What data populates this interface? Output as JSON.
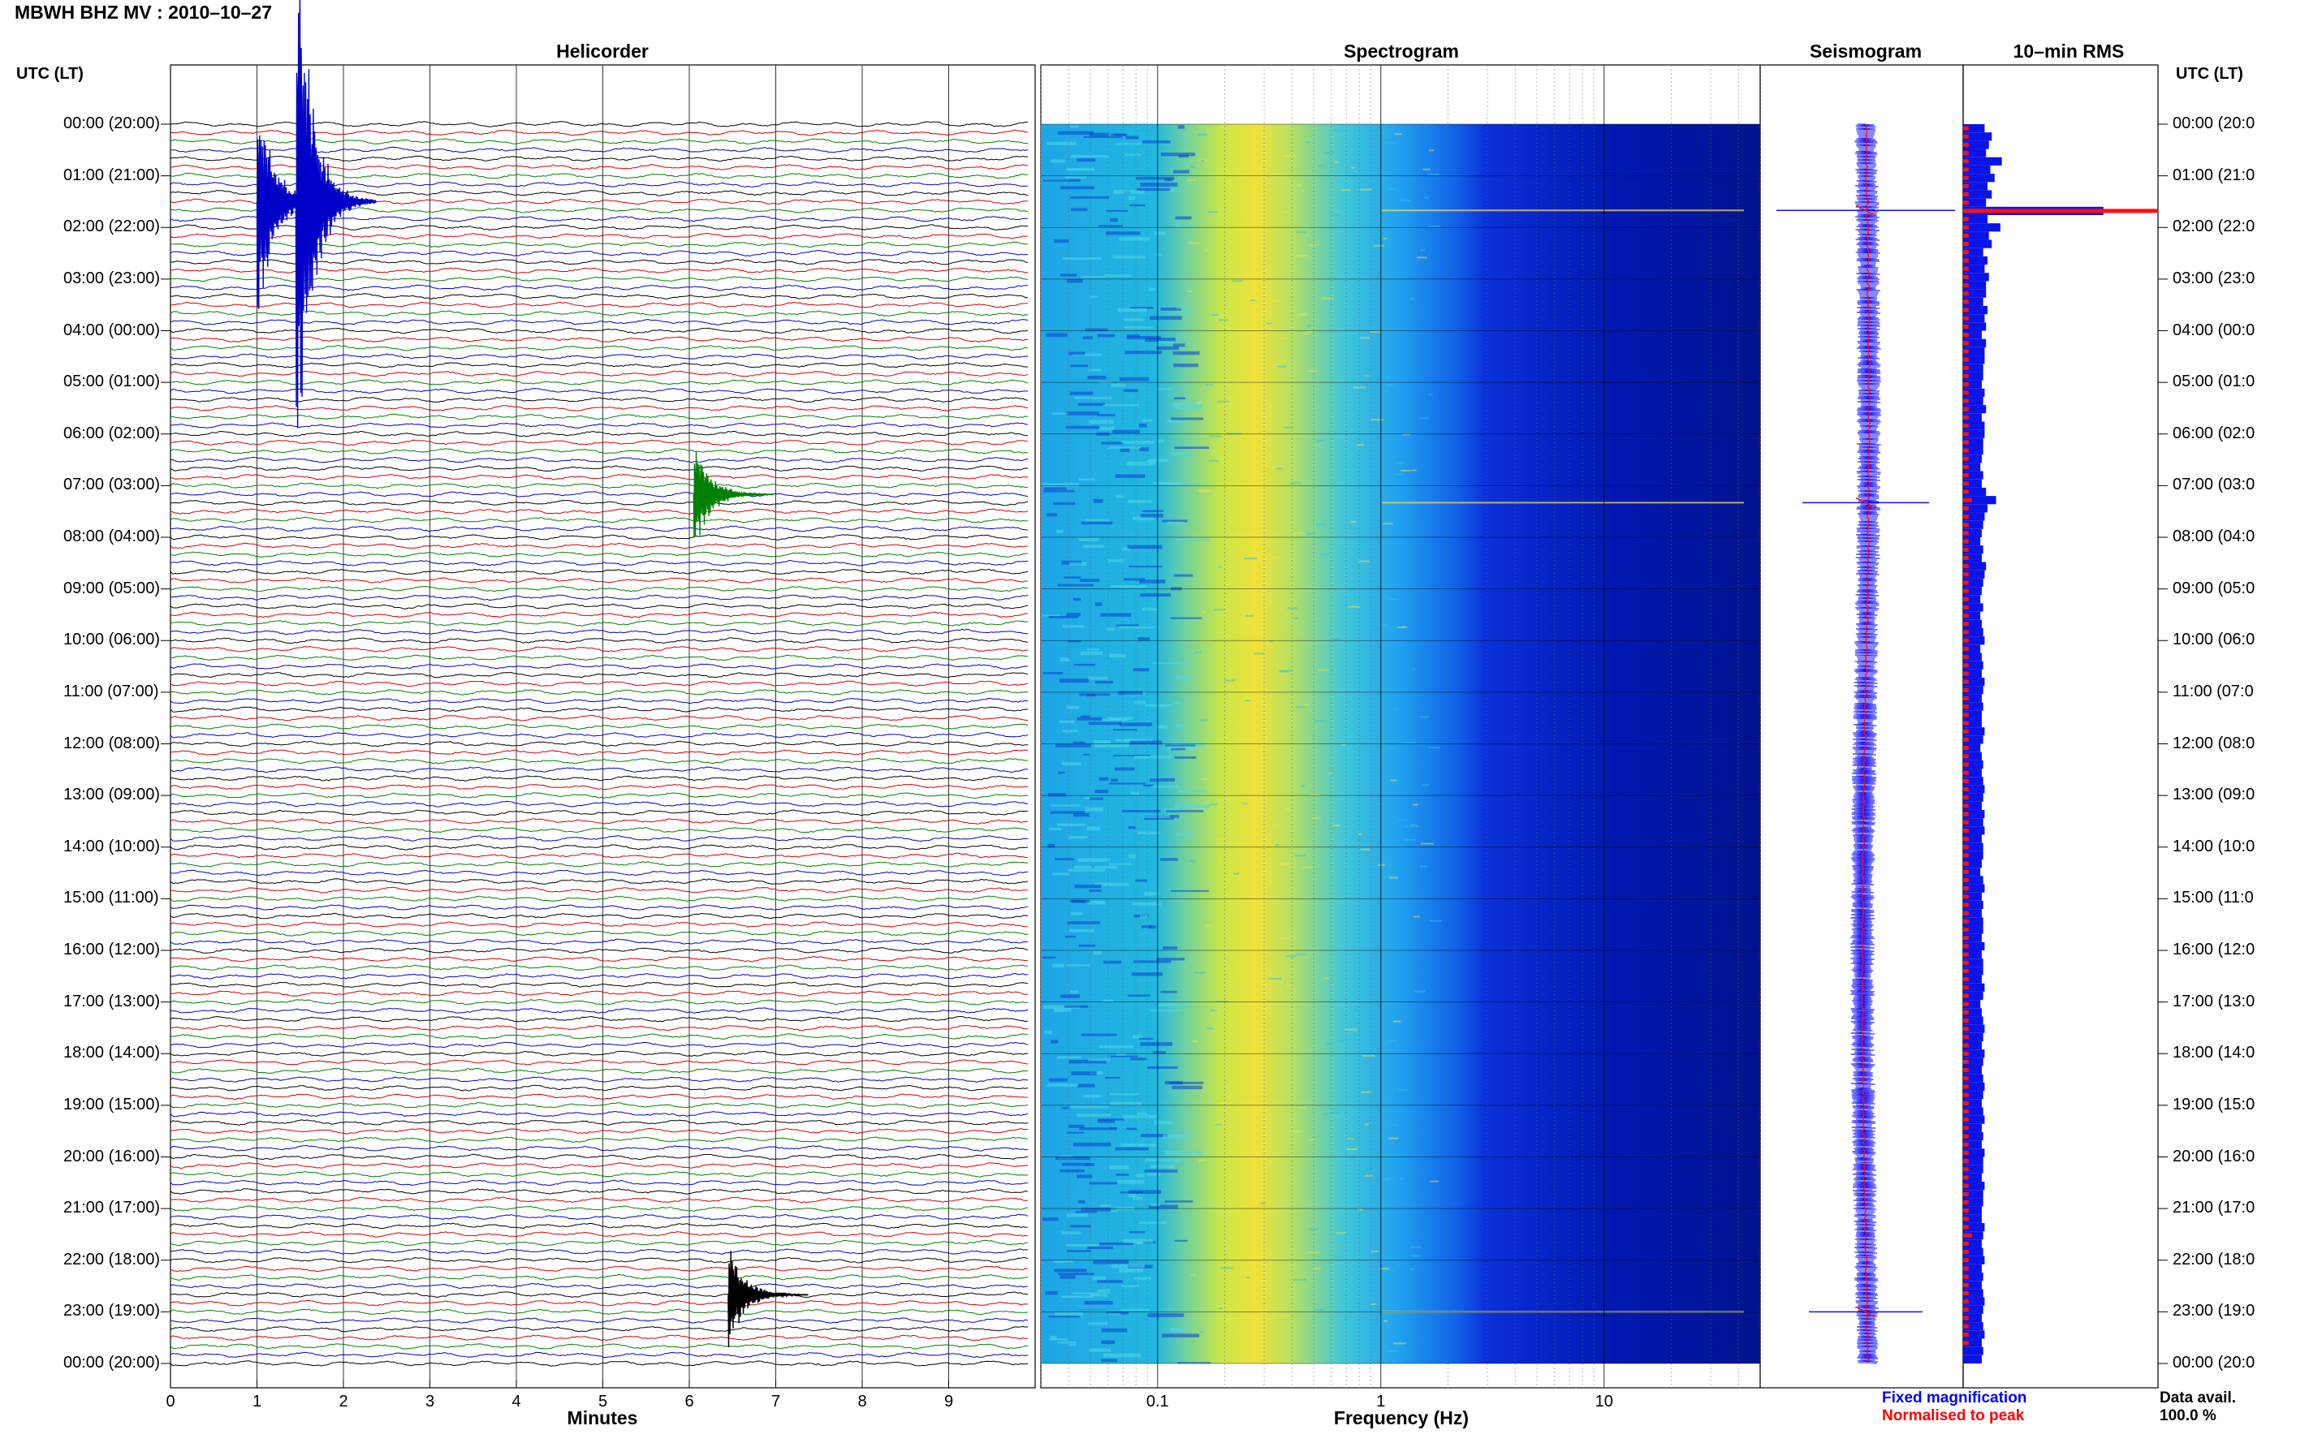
{
  "title": "MBWH BHZ MV : 2010–10–27",
  "panels": {
    "helicorder": "Helicorder",
    "spectrogram": "Spectrogram",
    "seismogram": "Seismogram",
    "rms": "10–min RMS"
  },
  "utc_header_left": "UTC (LT)",
  "utc_header_right": "UTC (LT)",
  "hour_labels_left": [
    "00:00 (20:00)",
    "01:00 (21:00)",
    "02:00 (22:00)",
    "03:00 (23:00)",
    "04:00 (00:00)",
    "05:00 (01:00)",
    "06:00 (02:00)",
    "07:00 (03:00)",
    "08:00 (04:00)",
    "09:00 (05:00)",
    "10:00 (06:00)",
    "11:00 (07:00)",
    "12:00 (08:00)",
    "13:00 (09:00)",
    "14:00 (10:00)",
    "15:00 (11:00)",
    "16:00 (12:00)",
    "17:00 (13:00)",
    "18:00 (14:00)",
    "19:00 (15:00)",
    "20:00 (16:00)",
    "21:00 (17:00)",
    "22:00 (18:00)",
    "23:00 (19:00)",
    "00:00 (20:00)"
  ],
  "hour_labels_right": [
    "00:00 (20:0",
    "01:00 (21:0",
    "02:00 (22:0",
    "03:00 (23:0",
    "04:00 (00:0",
    "05:00 (01:0",
    "06:00 (02:0",
    "07:00 (03:0",
    "08:00 (04:0",
    "09:00 (05:0",
    "10:00 (06:0",
    "11:00 (07:0",
    "12:00 (08:0",
    "13:00 (09:0",
    "14:00 (10:0",
    "15:00 (11:0",
    "16:00 (12:0",
    "17:00 (13:0",
    "18:00 (14:0",
    "19:00 (15:0",
    "20:00 (16:0",
    "21:00 (17:0",
    "22:00 (18:0",
    "23:00 (19:0",
    "00:00 (20:0"
  ],
  "x_axis": {
    "minutes_label": "Minutes",
    "minutes_ticks": [
      "0",
      "1",
      "2",
      "3",
      "4",
      "5",
      "6",
      "7",
      "8",
      "9"
    ],
    "frequency_label": "Frequency (Hz)",
    "frequency_ticks": [
      "0.1",
      "1",
      "10"
    ]
  },
  "legend": {
    "fixed": "Fixed magnification",
    "normalised": "Normalised to peak",
    "fixed_color": "#0000ff",
    "normalised_color": "#ff0000"
  },
  "data_avail": {
    "label": "Data avail.",
    "value": "100.0 %"
  },
  "trace_colors": [
    "#000000",
    "#d40000",
    "#008000",
    "#0000c8"
  ],
  "chart_data": [
    {
      "type": "line",
      "name": "helicorder",
      "x_unit": "minutes",
      "xlim": [
        0,
        10
      ],
      "rows_per_hour": 6,
      "hours": 24,
      "events": [
        {
          "hour": 1.5,
          "minute": 1.0,
          "color": "#0000c8",
          "amp": 3.0
        },
        {
          "hour": 1.5,
          "minute": 1.45,
          "color": "#0000c8",
          "amp": 7.0
        },
        {
          "hour": 7.17,
          "minute": 6.05,
          "color": "#008000",
          "amp": 1.4
        },
        {
          "hour": 22.67,
          "minute": 6.45,
          "color": "#000000",
          "amp": 1.3
        }
      ]
    },
    {
      "type": "heatmap",
      "name": "spectrogram",
      "x_scale": "log",
      "xlim": [
        0.03,
        50
      ],
      "ylim_hours": [
        0,
        24
      ],
      "colormap": [
        "#00008c",
        "#0028e6",
        "#1e90ff",
        "#20c8e8",
        "#8ce68c",
        "#f0e632"
      ],
      "events_hours": [
        1.67,
        7.33,
        23.0
      ]
    },
    {
      "type": "line",
      "name": "seismogram",
      "events_hours": [
        1.67,
        7.33,
        23.0
      ]
    },
    {
      "type": "bar",
      "name": "rms_10min",
      "fixed": [
        1.5,
        2.0,
        1.8,
        1.6,
        2.7,
        1.9,
        2.2,
        1.7,
        2.0,
        1.6,
        9.8,
        1.7,
        2.6,
        1.8,
        2.0,
        1.4,
        1.7,
        1.5,
        1.8,
        1.6,
        1.6,
        1.4,
        1.7,
        1.5,
        1.6,
        1.3,
        1.6,
        1.5,
        1.5,
        1.4,
        1.4,
        1.3,
        1.5,
        1.4,
        1.6,
        1.3,
        1.5,
        1.5,
        1.4,
        1.4,
        1.3,
        1.2,
        1.4,
        1.3,
        1.6,
        2.3,
        1.7,
        1.5,
        1.4,
        1.3,
        1.2,
        1.4,
        1.3,
        1.6,
        1.5,
        1.4,
        1.3,
        1.2,
        1.4,
        1.2,
        1.3,
        1.4,
        1.5,
        1.2,
        1.3,
        1.4,
        1.3,
        1.5,
        1.4,
        1.3,
        1.4,
        1.3,
        1.3,
        1.5,
        1.4,
        1.2,
        1.3,
        1.4,
        1.3,
        1.4,
        1.5,
        1.4,
        1.3,
        1.5,
        1.4,
        1.5,
        1.3,
        1.4,
        1.4,
        1.3,
        1.2,
        1.4,
        1.5,
        1.3,
        1.4,
        1.3,
        1.4,
        1.4,
        1.3,
        1.5,
        1.3,
        1.4,
        1.4,
        1.3,
        1.5,
        1.4,
        1.2,
        1.3,
        1.4,
        1.5,
        1.4,
        1.3,
        1.5,
        1.4,
        1.3,
        1.4,
        1.5,
        1.4,
        1.3,
        1.4,
        1.5,
        1.3,
        1.4,
        1.3,
        1.5,
        1.4,
        1.4,
        1.3,
        1.5,
        1.4,
        1.4,
        1.3,
        1.3,
        1.5,
        1.4,
        1.3,
        1.4,
        1.5,
        1.3,
        1.4,
        1.3,
        1.4,
        1.5,
        1.4,
        1.3,
        1.4,
        1.5,
        1.3,
        1.4,
        1.3
      ],
      "normalised": [
        0.5,
        0.5,
        0.5,
        0.5,
        0.5,
        0.5,
        0.5,
        0.5,
        0.5,
        0.5,
        9.8,
        0.5,
        0.5,
        0.5,
        0.5,
        0.5,
        0.5,
        0.5,
        0.5,
        0.5,
        0.5,
        0.5,
        0.5,
        0.5,
        0.5,
        0.5,
        0.5,
        0.5,
        0.5,
        0.5,
        0.5,
        0.5,
        0.5,
        0.5,
        0.5,
        0.5,
        0.5,
        0.5,
        0.5,
        0.5,
        0.5,
        0.5,
        0.5,
        0.5,
        0.5,
        0.8,
        0.5,
        0.5,
        0.5,
        0.5,
        0.5,
        0.5,
        0.5,
        0.5,
        0.5,
        0.5,
        0.5,
        0.5,
        0.5,
        0.5,
        0.5,
        0.5,
        0.5,
        0.5,
        0.5,
        0.5,
        0.5,
        0.5,
        0.5,
        0.5,
        0.5,
        0.5,
        0.5,
        0.5,
        0.5,
        0.5,
        0.5,
        0.5,
        0.5,
        0.5,
        0.5,
        0.5,
        0.5,
        0.5,
        0.5,
        0.5,
        0.5,
        0.5,
        0.5,
        0.5,
        0.5,
        0.5,
        0.5,
        0.5,
        0.5,
        0.5,
        0.5,
        0.5,
        0.5,
        0.5,
        0.5,
        0.5,
        0.5,
        0.5,
        0.5,
        0.5,
        0.5,
        0.5,
        0.5,
        0.5,
        0.5,
        0.5,
        0.5,
        0.5,
        0.5,
        0.5,
        0.5,
        0.5,
        0.5,
        0.5,
        0.5,
        0.5,
        0.5,
        0.5,
        0.5,
        0.5,
        0.5,
        0.5,
        0.5,
        0.5,
        0.5,
        0.5,
        0.5,
        0.5,
        0.8,
        0.5,
        0.5,
        0.5,
        0.5,
        0.5,
        0.5,
        0.5,
        0.5,
        0.5,
        0.5,
        0.5,
        0.5,
        0.5
      ],
      "peak_hours": [
        1.67,
        7.33,
        23.0
      ]
    }
  ]
}
